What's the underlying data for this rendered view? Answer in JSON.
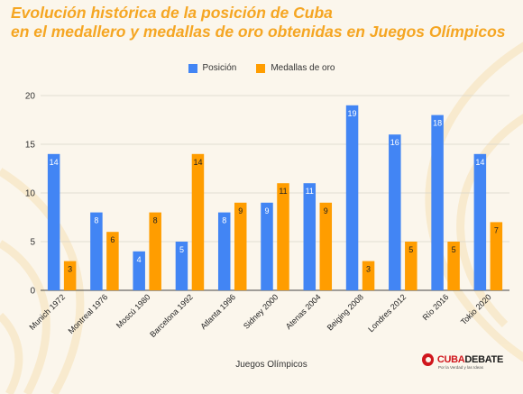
{
  "title_lines": [
    "Evolución histórica de la posición de Cuba",
    "en el medallero y medallas de oro obtenidas en Juegos Olímpicos"
  ],
  "brand": {
    "name_part1": "CUBA",
    "name_part2": "DEBATE",
    "tagline": "Por la Verdad y las Ideas"
  },
  "colors": {
    "posicion": "#4285f4",
    "oro": "#ff9d00",
    "title": "#f5a623",
    "brand": "#d0161d"
  },
  "chart_data": {
    "type": "bar",
    "title": "Evolución histórica de la posición de Cuba en el medallero y medallas de oro obtenidas en Juegos Olímpicos",
    "xlabel": "Juegos Olímpicos",
    "ylabel": "",
    "categories": [
      "Munich 1972",
      "Montreal 1976",
      "Moscú 1980",
      "Barcelona 1992",
      "Atlanta 1996",
      "Sidney 2000",
      "Atenas 2004",
      "Beiging 2008",
      "Londres 2012",
      "Río 2016",
      "Tokio 2020"
    ],
    "series": [
      {
        "name": "Posición",
        "values": [
          14,
          8,
          4,
          5,
          8,
          9,
          11,
          19,
          16,
          18,
          14
        ]
      },
      {
        "name": "Medallas de oro",
        "values": [
          3,
          6,
          8,
          14,
          9,
          11,
          9,
          3,
          5,
          5,
          7
        ]
      }
    ],
    "ylim": [
      0,
      20
    ],
    "yticks": [
      0,
      5,
      10,
      15,
      20
    ],
    "grid": true,
    "legend_position": "top"
  }
}
